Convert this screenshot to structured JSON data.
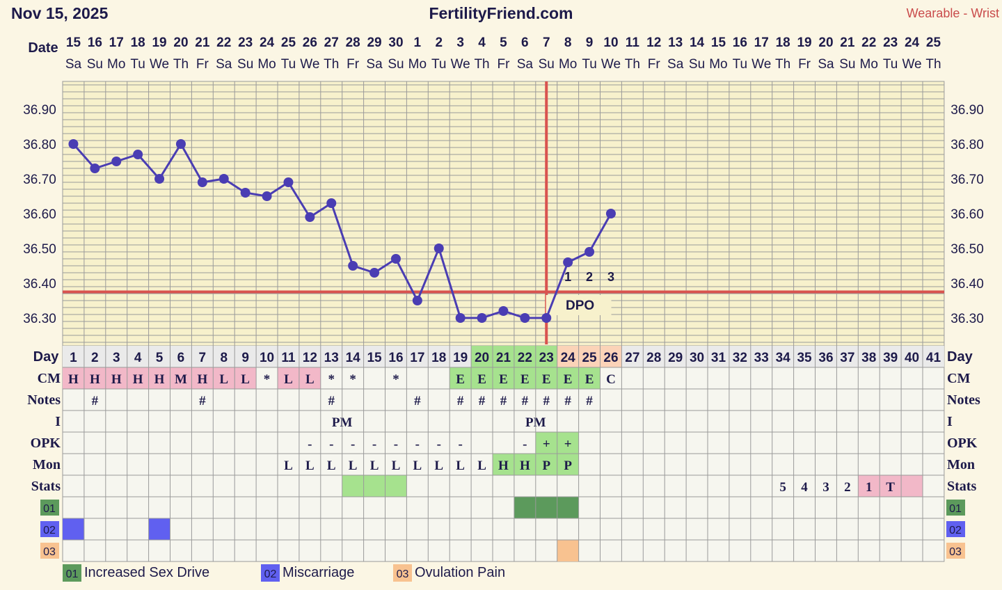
{
  "header": {
    "date": "Nov 15, 2025",
    "site": "FertilityFriend.com",
    "source": "Wearable - Wrist"
  },
  "labels": {
    "date": "Day",
    "date_row": "Date",
    "day": "Day",
    "cm": "CM",
    "notes": "Notes",
    "i": "I",
    "opk": "OPK",
    "mon": "Mon",
    "stats": "Stats",
    "dpo": "DPO"
  },
  "colors": {
    "background": "#fbf6e4",
    "plot_bg": "#f7f1cc",
    "grid": "#9a9a9a",
    "line": "#4a3db3",
    "coverline": "#d9534f",
    "pink": "#f2b8c8",
    "green": "#a6e28e",
    "dark_green": "#5c9a5c",
    "peach": "#fbd3b8",
    "purple": "#6060f0",
    "orange": "#f8c290"
  },
  "chart_data": {
    "type": "line",
    "title": "",
    "ylabel": "",
    "ylim": [
      36.22,
      36.98
    ],
    "yticks": [
      "36.90",
      "36.80",
      "36.70",
      "36.60",
      "36.50",
      "36.40",
      "36.30"
    ],
    "dates": [
      "15",
      "16",
      "17",
      "18",
      "19",
      "20",
      "21",
      "22",
      "23",
      "24",
      "25",
      "26",
      "27",
      "28",
      "29",
      "30",
      "1",
      "2",
      "3",
      "4",
      "5",
      "6",
      "7",
      "8",
      "9",
      "10",
      "11",
      "12",
      "13",
      "14",
      "15",
      "16",
      "17",
      "18",
      "19",
      "20",
      "21",
      "22",
      "23",
      "24",
      "25"
    ],
    "weekdays": [
      "Sa",
      "Su",
      "Mo",
      "Tu",
      "We",
      "Th",
      "Fr",
      "Sa",
      "Su",
      "Mo",
      "Tu",
      "We",
      "Th",
      "Fr",
      "Sa",
      "Su",
      "Mo",
      "Tu",
      "We",
      "Th",
      "Fr",
      "Sa",
      "Su",
      "Mo",
      "Tu",
      "We",
      "Th",
      "Fr",
      "Sa",
      "Su",
      "Mo",
      "Tu",
      "We",
      "Th",
      "Fr",
      "Sa",
      "Su",
      "Mo",
      "Tu",
      "We",
      "Th"
    ],
    "cycle_days": [
      "1",
      "2",
      "3",
      "4",
      "5",
      "6",
      "7",
      "8",
      "9",
      "10",
      "11",
      "12",
      "13",
      "14",
      "15",
      "16",
      "17",
      "18",
      "19",
      "20",
      "21",
      "22",
      "23",
      "24",
      "25",
      "26",
      "27",
      "28",
      "29",
      "30",
      "31",
      "32",
      "33",
      "34",
      "35",
      "36",
      "37",
      "38",
      "39",
      "40",
      "41"
    ],
    "temperatures": [
      36.8,
      36.73,
      36.75,
      36.77,
      36.7,
      36.8,
      36.69,
      36.7,
      36.66,
      36.65,
      36.69,
      36.59,
      36.63,
      36.45,
      36.43,
      36.47,
      36.35,
      36.5,
      36.3,
      36.3,
      36.32,
      36.3,
      36.3,
      36.46,
      36.49,
      36.6
    ],
    "coverline": 36.375,
    "ovulation_day": 23,
    "dpo_labels": [
      "1",
      "2",
      "3"
    ]
  },
  "rows": {
    "day_highlight": {
      "20": "green",
      "21": "green",
      "22": "green",
      "23": "green",
      "24": "peach",
      "25": "peach",
      "26": "peach"
    },
    "cm": [
      "H",
      "H",
      "H",
      "H",
      "H",
      "M",
      "H",
      "L",
      "L",
      "*",
      "L",
      "L",
      "*",
      "*",
      "",
      "*",
      "",
      "",
      "E",
      "E",
      "E",
      "E",
      "E",
      "E",
      "E",
      "C",
      "",
      "",
      "",
      "",
      "",
      "",
      "",
      "",
      "",
      "",
      "",
      "",
      "",
      "",
      ""
    ],
    "cm_colors": {
      "H": "pink",
      "M": "pink",
      "L": "pink",
      "E": "green"
    },
    "notes": [
      "",
      "#",
      "",
      "",
      "",
      "",
      "#",
      "",
      "",
      "",
      "",
      "",
      "#",
      "",
      "",
      "",
      "#",
      "",
      "#",
      "#",
      "#",
      "#",
      "#",
      "#",
      "#",
      "",
      "",
      "",
      "",
      "",
      "",
      "",
      "",
      "",
      "",
      "",
      "",
      "",
      "",
      "",
      ""
    ],
    "intercourse": [
      "",
      "",
      "",
      "",
      "",
      "",
      "",
      "",
      "",
      "",
      "",
      "",
      "PM",
      "",
      "",
      "",
      "",
      "",
      "",
      "",
      "",
      "PM",
      "",
      "",
      "",
      "",
      "",
      "",
      "",
      "",
      "",
      "",
      "",
      "",
      "",
      "",
      "",
      "",
      "",
      "",
      ""
    ],
    "opk": [
      "",
      "",
      "",
      "",
      "",
      "",
      "",
      "",
      "",
      "",
      "",
      "-",
      "-",
      "-",
      "-",
      "-",
      "-",
      "-",
      "-",
      "",
      "",
      "-",
      "+",
      "+",
      "",
      "",
      "",
      "",
      "",
      "",
      "",
      "",
      "",
      "",
      "",
      "",
      "",
      "",
      "",
      "",
      ""
    ],
    "mon": [
      "",
      "",
      "",
      "",
      "",
      "",
      "",
      "",
      "",
      "",
      "L",
      "L",
      "L",
      "L",
      "L",
      "L",
      "L",
      "L",
      "L",
      "L",
      "H",
      "H",
      "P",
      "P",
      "",
      "",
      "",
      "",
      "",
      "",
      "",
      "",
      "",
      "",
      "",
      "",
      "",
      "",
      "",
      "",
      ""
    ],
    "stats": [
      "",
      "",
      "",
      "",
      "",
      "",
      "",
      "",
      "",
      "",
      "",
      "",
      "",
      "",
      "",
      "",
      "",
      "",
      "",
      "",
      "",
      "",
      "",
      "",
      "",
      "",
      "",
      "",
      "",
      "",
      "",
      "",
      "",
      "5",
      "4",
      "3",
      "2",
      "1",
      "T",
      "",
      ""
    ],
    "stats_fill": {
      "14": "green",
      "15": "green",
      "16": "green",
      "38": "pink",
      "39": "pink",
      "40": "pink"
    },
    "custom1_days": [
      22,
      23,
      24
    ],
    "custom2_days": [
      1,
      5
    ],
    "custom3_days": [
      24
    ]
  },
  "legend": [
    {
      "code": "01",
      "label": "Increased Sex Drive",
      "color": "#5c9a5c"
    },
    {
      "code": "02",
      "label": "Miscarriage",
      "color": "#6060f0"
    },
    {
      "code": "03",
      "label": "Ovulation Pain",
      "color": "#f8c290"
    }
  ]
}
